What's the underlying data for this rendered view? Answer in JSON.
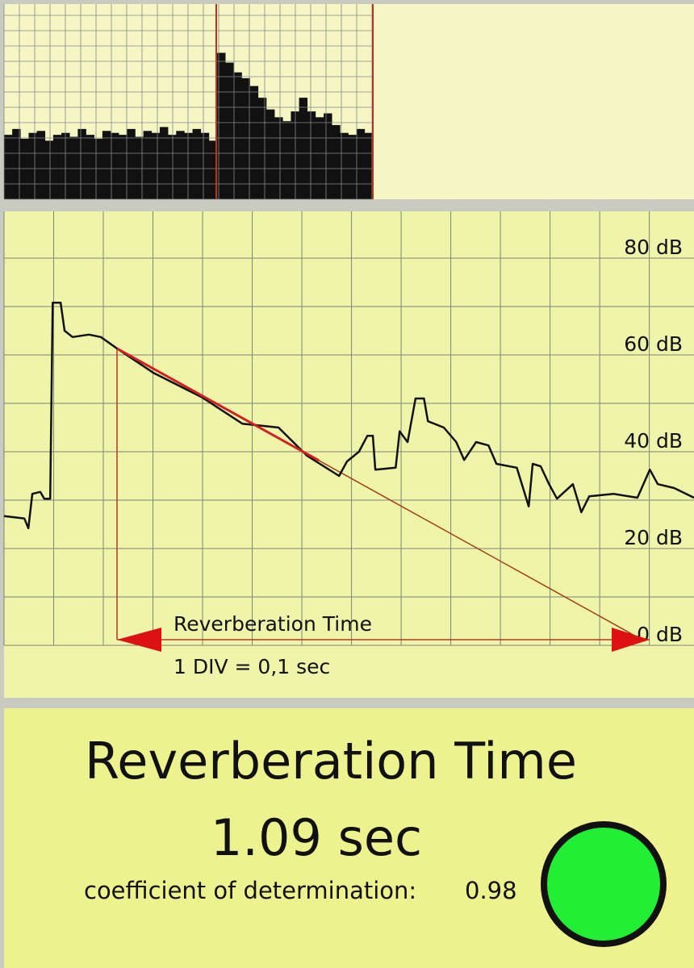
{
  "waveform": {
    "type": "bar",
    "values": [
      33,
      36,
      31,
      34,
      35,
      30,
      33,
      34,
      32,
      36,
      33,
      31,
      35,
      34,
      33,
      36,
      32,
      35,
      34,
      37,
      33,
      35,
      34,
      36,
      34,
      30,
      75,
      70,
      65,
      62,
      58,
      52,
      46,
      42,
      40,
      45,
      52,
      45,
      42,
      44,
      38,
      34,
      33,
      36,
      34
    ],
    "ylim": [
      0,
      100
    ]
  },
  "decay": {
    "type": "line",
    "x": [
      0,
      0.041,
      0.049,
      0.057,
      0.073,
      0.081,
      0.093,
      0.098,
      0.114,
      0.122,
      0.138,
      0.171,
      0.195,
      0.228,
      0.301,
      0.398,
      0.48,
      0.553,
      0.61,
      0.675,
      0.691,
      0.715,
      0.732,
      0.743,
      0.748,
      0.789,
      0.797,
      0.813,
      0.829,
      0.846,
      0.854,
      0.886,
      0.911,
      0.927,
      0.951,
      0.976,
      0.992,
      1.033,
      1.057,
      1.065,
      1.081,
      1.098,
      1.114,
      1.146,
      1.163,
      1.179,
      1.228,
      1.276,
      1.301,
      1.317,
      1.35,
      1.39
    ],
    "values": [
      26.7,
      26.2,
      24.2,
      31.3,
      31.7,
      30.3,
      30.3,
      70.8,
      70.8,
      65,
      63.7,
      64.2,
      63.7,
      61.3,
      56.3,
      51.3,
      45.8,
      45,
      39.2,
      35,
      38,
      40,
      43.3,
      43.3,
      36.3,
      36.7,
      44.2,
      42,
      51,
      51,
      46.3,
      45,
      42,
      38.3,
      42,
      41.3,
      37.5,
      36.7,
      28.7,
      37.5,
      37,
      33.3,
      30.3,
      33.3,
      27.5,
      30.8,
      31.3,
      30.5,
      36.3,
      33.3,
      32.5,
      30.5
    ],
    "fit": {
      "x": [
        0.228,
        1.276
      ],
      "values": [
        61.3,
        1.7
      ]
    },
    "xlim": [
      0,
      1.39
    ],
    "ylim": [
      0,
      90
    ],
    "xticks": [
      0,
      0.1,
      0.2,
      0.3,
      0.4,
      0.5,
      0.6,
      0.7,
      0.8,
      0.9,
      1.0,
      1.1,
      1.2,
      1.3
    ],
    "yticks": [
      {
        "value": 0,
        "label": "0 dB"
      },
      {
        "value": 10,
        "label": ""
      },
      {
        "value": 20,
        "label": "20 dB"
      },
      {
        "value": 30,
        "label": ""
      },
      {
        "value": 40,
        "label": "40 dB"
      },
      {
        "value": 50,
        "label": ""
      },
      {
        "value": 60,
        "label": "60 dB"
      },
      {
        "value": 70,
        "label": ""
      },
      {
        "value": 80,
        "label": "80 dB"
      }
    ],
    "span_label": "Reverberation Time",
    "division_label": "1 DIV = 0,1 sec"
  },
  "result": {
    "title": "Reverberation Time",
    "value": "1.09 sec",
    "coefficient_label": "coefficient of determination:",
    "coefficient_value": "0.98"
  }
}
